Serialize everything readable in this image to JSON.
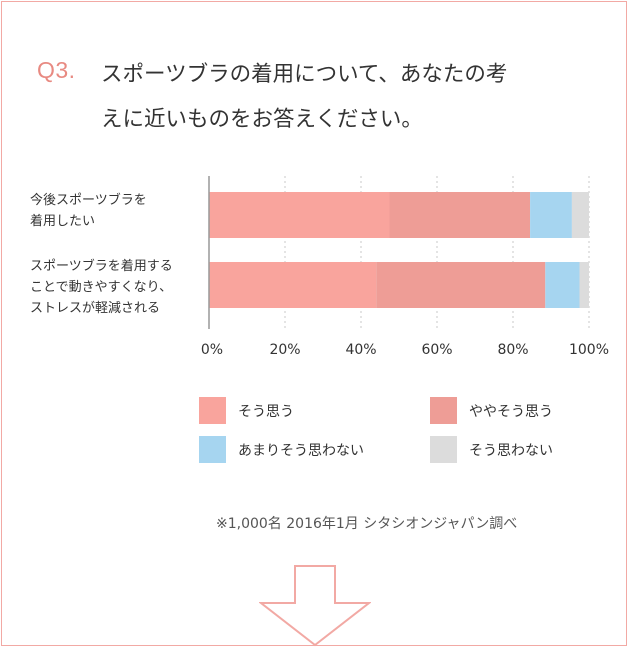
{
  "question": {
    "number": "Q3.",
    "line1": "スポーツブラの着用について、あなたの考",
    "line2": "えに近いものをお答えください。"
  },
  "chart_data": {
    "type": "bar",
    "stacked": true,
    "orientation": "horizontal",
    "categories": [
      [
        "今後スポーツブラを",
        "着用したい"
      ],
      [
        "スポーツブラを着用する",
        "ことで動きやすくなり、",
        "ストレスが軽減される"
      ]
    ],
    "series": [
      {
        "name": "そう思う",
        "values": [
          47.5,
          44
        ],
        "color": "#f9a49d"
      },
      {
        "name": "ややそう思う",
        "values": [
          37,
          44.5
        ],
        "color": "#ee9d96"
      },
      {
        "name": "あまりそう思わない",
        "values": [
          11,
          9
        ],
        "color": "#a6d5f0"
      },
      {
        "name": "そう思わない",
        "values": [
          4.5,
          2.5
        ],
        "color": "#dcdcdc"
      }
    ],
    "xlim": [
      0,
      100
    ],
    "x_ticks": [
      "0%",
      "20%",
      "40%",
      "60%",
      "80%",
      "100%"
    ],
    "grid": true,
    "legend_position": "bottom"
  },
  "source": "※1,000名 2016年1月 シタシオンジャパン調べ",
  "arrow_icon": "down-arrow-outline-icon",
  "colors": {
    "frame": "#f2a9a4",
    "accent": "#e88a82"
  }
}
